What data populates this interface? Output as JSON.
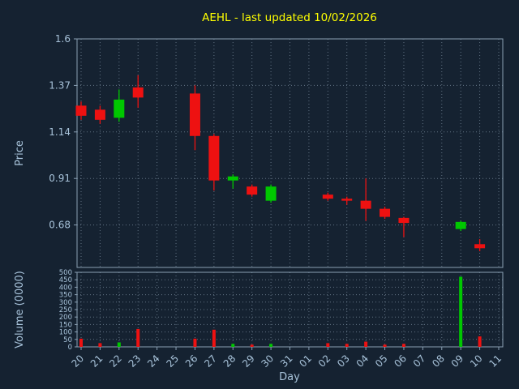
{
  "title": "AEHL - last updated 10/02/2026",
  "colors": {
    "background": "#152231",
    "title": "#ffff00",
    "axis_text": "#a8c3da",
    "grid": "#94a8ba",
    "spine": "#8aa0b4",
    "up": "#00c800",
    "down": "#ee1111"
  },
  "chart_data": {
    "type": "candlestick+volume-bar",
    "title": "AEHL - last updated 10/02/2026",
    "xlabel": "Day",
    "ylabel_price": "Price",
    "ylabel_volume": "Volume (0000)",
    "x_ticklabels": [
      "20",
      "21",
      "22",
      "23",
      "24",
      "25",
      "26",
      "27",
      "28",
      "29",
      "30",
      "31",
      "01",
      "02",
      "03",
      "04",
      "05",
      "06",
      "07",
      "08",
      "09",
      "10",
      "11"
    ],
    "price_ticks": [
      1.6,
      1.37,
      1.14,
      0.91,
      0.68
    ],
    "price_ylim": [
      0.47,
      1.6
    ],
    "volume_ticks": [
      500,
      450,
      400,
      350,
      300,
      250,
      200,
      150,
      100,
      50,
      0
    ],
    "volume_ylim": [
      0,
      500
    ],
    "grid": "dotted",
    "candles": [
      {
        "day": "20",
        "open": 1.27,
        "high": 1.29,
        "low": 1.2,
        "close": 1.22,
        "volume": 55
      },
      {
        "day": "21",
        "open": 1.25,
        "high": 1.27,
        "low": 1.18,
        "close": 1.2,
        "volume": 25
      },
      {
        "day": "22",
        "open": 1.21,
        "high": 1.35,
        "low": 1.19,
        "close": 1.3,
        "volume": 30
      },
      {
        "day": "23",
        "open": 1.36,
        "high": 1.42,
        "low": 1.26,
        "close": 1.31,
        "volume": 120
      },
      {
        "day": "26",
        "open": 1.33,
        "high": 1.37,
        "low": 1.05,
        "close": 1.12,
        "volume": 55
      },
      {
        "day": "27",
        "open": 1.12,
        "high": 1.13,
        "low": 0.85,
        "close": 0.9,
        "volume": 115
      },
      {
        "day": "28",
        "open": 0.9,
        "high": 0.93,
        "low": 0.86,
        "close": 0.92,
        "volume": 20
      },
      {
        "day": "29",
        "open": 0.87,
        "high": 0.88,
        "low": 0.82,
        "close": 0.83,
        "volume": 15
      },
      {
        "day": "30",
        "open": 0.8,
        "high": 0.88,
        "low": 0.79,
        "close": 0.87,
        "volume": 20
      },
      {
        "day": "02",
        "open": 0.83,
        "high": 0.84,
        "low": 0.8,
        "close": 0.81,
        "volume": 25
      },
      {
        "day": "03",
        "open": 0.81,
        "high": 0.82,
        "low": 0.78,
        "close": 0.8,
        "volume": 20
      },
      {
        "day": "04",
        "open": 0.8,
        "high": 0.91,
        "low": 0.7,
        "close": 0.76,
        "volume": 35
      },
      {
        "day": "05",
        "open": 0.76,
        "high": 0.77,
        "low": 0.71,
        "close": 0.72,
        "volume": 15
      },
      {
        "day": "06",
        "open": 0.715,
        "high": 0.72,
        "low": 0.62,
        "close": 0.69,
        "volume": 20
      },
      {
        "day": "09",
        "open": 0.66,
        "high": 0.7,
        "low": 0.65,
        "close": 0.695,
        "volume": 470
      },
      {
        "day": "10",
        "open": 0.585,
        "high": 0.61,
        "low": 0.55,
        "close": 0.565,
        "volume": 70
      }
    ]
  }
}
